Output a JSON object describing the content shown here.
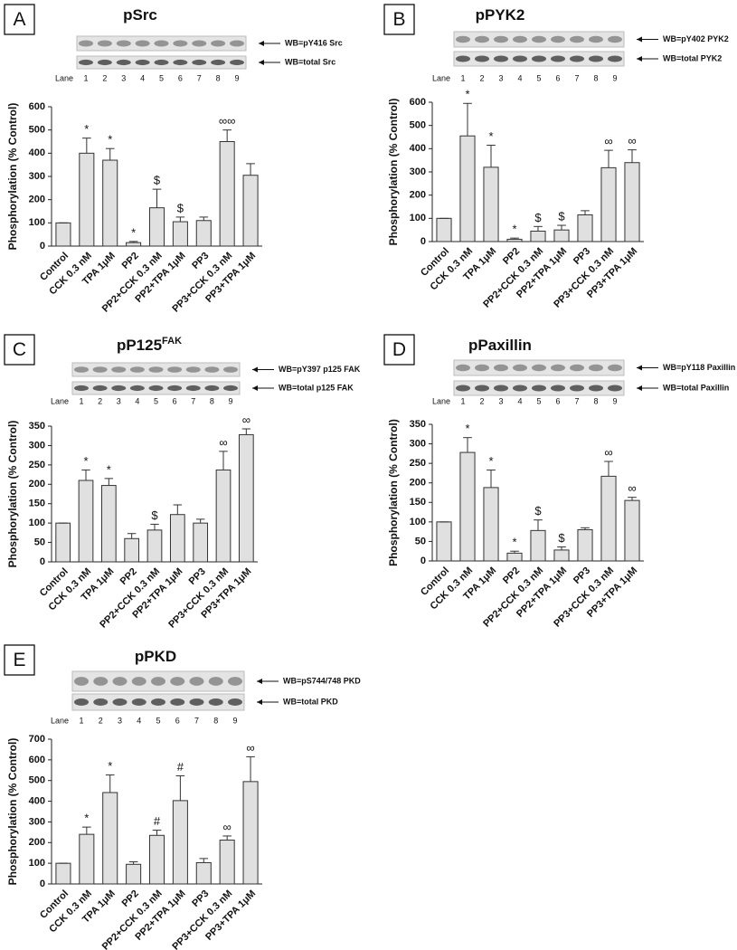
{
  "chart_data": [
    {
      "type": "bar",
      "panel": "A",
      "title": "pSrc",
      "blot_labels": [
        "WB=pY416 Src",
        "WB=total Src"
      ],
      "lane_label": "Lane",
      "lanes": [
        1,
        2,
        3,
        4,
        5,
        6,
        7,
        8,
        9
      ],
      "ylabel": "Phosphorylation (% Control)",
      "categories": [
        "Control",
        "CCK 0.3 nM",
        "TPA 1μM",
        "PP2",
        "PP2+CCK 0.3 nM",
        "PP2+TPA 1μM",
        "PP3",
        "PP3+CCK 0.3 nM",
        "PP3+TPA 1μM"
      ],
      "values": [
        100,
        400,
        370,
        15,
        165,
        105,
        110,
        450,
        305
      ],
      "errors": [
        0,
        65,
        50,
        5,
        80,
        20,
        15,
        50,
        50
      ],
      "markers": [
        null,
        "*",
        "*",
        "*",
        "$",
        "$",
        null,
        "∞∞",
        null
      ],
      "color": "#e0e0e0",
      "ylim": [
        0,
        600
      ],
      "yticks": [
        0,
        100,
        200,
        300,
        400,
        500,
        600
      ]
    },
    {
      "type": "bar",
      "panel": "B",
      "title": "pPYK2",
      "blot_labels": [
        "WB=pY402 PYK2",
        "WB=total PYK2"
      ],
      "lane_label": "Lane",
      "lanes": [
        1,
        2,
        3,
        4,
        5,
        6,
        7,
        8,
        9
      ],
      "ylabel": "Phosphorylation (% Control)",
      "categories": [
        "Control",
        "CCK 0.3 nM",
        "TPA 1μM",
        "PP2",
        "PP2+CCK 0.3 nM",
        "PP2+TPA 1μM",
        "PP3",
        "PP3+CCK 0.3 nM",
        "PP3+TPA 1μM"
      ],
      "values": [
        100,
        455,
        320,
        10,
        45,
        50,
        115,
        318,
        340
      ],
      "errors": [
        0,
        140,
        95,
        5,
        20,
        20,
        18,
        75,
        55
      ],
      "markers": [
        null,
        "*",
        "*",
        "*",
        "$",
        "$",
        null,
        "∞",
        "∞"
      ],
      "color": "#e0e0e0",
      "ylim": [
        0,
        600
      ],
      "yticks": [
        0,
        100,
        200,
        300,
        400,
        500,
        600
      ]
    },
    {
      "type": "bar",
      "panel": "C",
      "title": "pP125",
      "title_superscript": "FAK",
      "blot_labels": [
        "WB=pY397 p125 FAK",
        "WB=total p125 FAK"
      ],
      "lane_label": "Lane",
      "lanes": [
        1,
        2,
        3,
        4,
        5,
        6,
        7,
        8,
        9
      ],
      "ylabel": "Phosphorylation (% Control)",
      "categories": [
        "Control",
        "CCK 0.3 nM",
        "TPA 1μM",
        "PP2",
        "PP2+CCK 0.3 nM",
        "PP2+TPA 1μM",
        "PP3",
        "PP3+CCK 0.3 nM",
        "PP3+TPA 1μM"
      ],
      "values": [
        100,
        210,
        197,
        60,
        82,
        122,
        100,
        237,
        328
      ],
      "errors": [
        0,
        27,
        18,
        13,
        15,
        25,
        10,
        48,
        15
      ],
      "markers": [
        null,
        "*",
        "*",
        null,
        "$",
        null,
        null,
        "∞",
        "∞"
      ],
      "color": "#e0e0e0",
      "ylim": [
        0,
        350
      ],
      "yticks": [
        0,
        50,
        100,
        150,
        200,
        250,
        300,
        350
      ]
    },
    {
      "type": "bar",
      "panel": "D",
      "title": "pPaxillin",
      "blot_labels": [
        "WB=pY118 Paxillin",
        "WB=total Paxillin"
      ],
      "lane_label": "Lane",
      "lanes": [
        1,
        2,
        3,
        4,
        5,
        6,
        7,
        8,
        9
      ],
      "ylabel": "Phosphorylation (% Control)",
      "categories": [
        "Control",
        "CCK 0.3 nM",
        "TPA 1μM",
        "PP2",
        "PP2+CCK 0.3 nM",
        "PP2+TPA 1μM",
        "PP3",
        "PP3+CCK 0.3 nM",
        "PP3+TPA 1μM"
      ],
      "values": [
        100,
        278,
        188,
        20,
        78,
        28,
        80,
        217,
        155
      ],
      "errors": [
        0,
        38,
        45,
        5,
        27,
        8,
        5,
        38,
        8
      ],
      "markers": [
        null,
        "*",
        "*",
        "*",
        "$",
        "$",
        null,
        "∞",
        "∞"
      ],
      "color": "#e0e0e0",
      "ylim": [
        0,
        350
      ],
      "yticks": [
        0,
        50,
        100,
        150,
        200,
        250,
        300,
        350
      ]
    },
    {
      "type": "bar",
      "panel": "E",
      "title": "pPKD",
      "blot_labels": [
        "WB=pS744/748 PKD",
        "WB=total PKD"
      ],
      "lane_label": "Lane",
      "lanes": [
        1,
        2,
        3,
        4,
        5,
        6,
        7,
        8,
        9
      ],
      "ylabel": "Phosphorylation (% Control)",
      "categories": [
        "Control",
        "CCK 0.3 nM",
        "TPA 1μM",
        "PP2",
        "PP2+CCK 0.3 nM",
        "PP2+TPA 1μM",
        "PP3",
        "PP3+CCK 0.3 nM",
        "PP3+TPA 1μM"
      ],
      "values": [
        100,
        240,
        442,
        95,
        235,
        403,
        103,
        212,
        495
      ],
      "errors": [
        0,
        35,
        85,
        12,
        25,
        120,
        20,
        20,
        120
      ],
      "markers": [
        null,
        "*",
        "*",
        null,
        "#",
        "#",
        null,
        "∞",
        "∞"
      ],
      "color": "#e0e0e0",
      "ylim": [
        0,
        700
      ],
      "yticks": [
        0,
        100,
        200,
        300,
        400,
        500,
        600,
        700
      ]
    }
  ]
}
